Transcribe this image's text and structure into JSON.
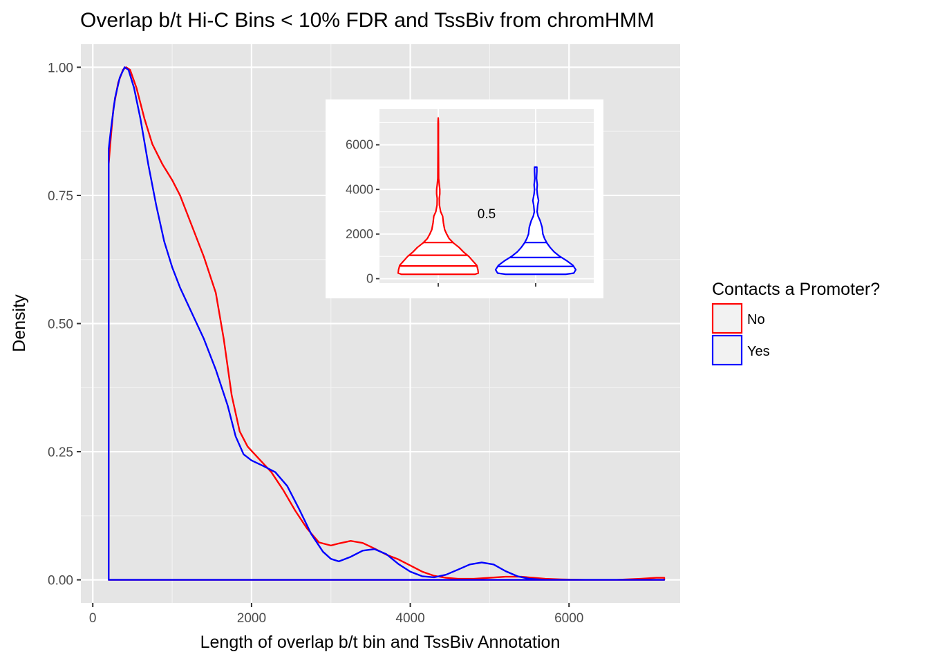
{
  "chart_data": [
    {
      "type": "line",
      "subtype": "density",
      "title": "Overlap b/t Hi-C Bins < 10% FDR and TssBiv from chromHMM",
      "xlabel": "Length of overlap b/t bin and TssBiv Annotation",
      "ylabel": "Density",
      "xlim": [
        -150,
        7400
      ],
      "ylim": [
        -0.045,
        1.045
      ],
      "x_ticks": [
        0,
        2000,
        4000,
        6000
      ],
      "y_ticks": [
        0.0,
        0.25,
        0.5,
        0.75,
        1.0
      ],
      "x_tick_labels": [
        "0",
        "2000",
        "4000",
        "6000"
      ],
      "y_tick_labels": [
        "0.00",
        "0.25",
        "0.50",
        "0.75",
        "1.00"
      ],
      "grid": true,
      "legend": {
        "title": "Contacts a Promoter?",
        "placement": "right",
        "entries": [
          {
            "label": "No",
            "color": "#ff0000"
          },
          {
            "label": "Yes",
            "color": "#0000ff"
          }
        ]
      },
      "series": [
        {
          "name": "No",
          "color": "#ff0000",
          "points": [
            [
              200,
              0.81
            ],
            [
              220,
              0.85
            ],
            [
              260,
              0.92
            ],
            [
              320,
              0.97
            ],
            [
              380,
              0.995
            ],
            [
              420,
              1.0
            ],
            [
              470,
              0.995
            ],
            [
              550,
              0.96
            ],
            [
              650,
              0.9
            ],
            [
              750,
              0.85
            ],
            [
              880,
              0.81
            ],
            [
              1000,
              0.78
            ],
            [
              1100,
              0.75
            ],
            [
              1250,
              0.69
            ],
            [
              1400,
              0.63
            ],
            [
              1550,
              0.56
            ],
            [
              1650,
              0.47
            ],
            [
              1750,
              0.36
            ],
            [
              1850,
              0.29
            ],
            [
              1950,
              0.26
            ],
            [
              2100,
              0.235
            ],
            [
              2250,
              0.21
            ],
            [
              2400,
              0.175
            ],
            [
              2550,
              0.135
            ],
            [
              2700,
              0.1
            ],
            [
              2850,
              0.073
            ],
            [
              3000,
              0.067
            ],
            [
              3100,
              0.071
            ],
            [
              3250,
              0.076
            ],
            [
              3400,
              0.072
            ],
            [
              3550,
              0.061
            ],
            [
              3700,
              0.049
            ],
            [
              3850,
              0.04
            ],
            [
              4000,
              0.028
            ],
            [
              4150,
              0.016
            ],
            [
              4300,
              0.008
            ],
            [
              4450,
              0.004
            ],
            [
              4600,
              0.002
            ],
            [
              4800,
              0.002
            ],
            [
              5000,
              0.004
            ],
            [
              5200,
              0.006
            ],
            [
              5400,
              0.006
            ],
            [
              5550,
              0.004
            ],
            [
              5700,
              0.002
            ],
            [
              5900,
              0.001
            ],
            [
              6200,
              0.0
            ],
            [
              6600,
              0.0
            ],
            [
              6900,
              0.002
            ],
            [
              7100,
              0.004
            ],
            [
              7200,
              0.004
            ],
            [
              7200,
              0.0
            ],
            [
              200,
              0.0
            ],
            [
              200,
              0.81
            ]
          ]
        },
        {
          "name": "Yes",
          "color": "#0000ff",
          "points": [
            [
              200,
              0.84
            ],
            [
              230,
              0.88
            ],
            [
              280,
              0.94
            ],
            [
              340,
              0.98
            ],
            [
              400,
              1.0
            ],
            [
              450,
              0.995
            ],
            [
              520,
              0.96
            ],
            [
              600,
              0.9
            ],
            [
              700,
              0.81
            ],
            [
              800,
              0.73
            ],
            [
              900,
              0.66
            ],
            [
              1000,
              0.61
            ],
            [
              1100,
              0.57
            ],
            [
              1250,
              0.52
            ],
            [
              1400,
              0.47
            ],
            [
              1550,
              0.41
            ],
            [
              1700,
              0.34
            ],
            [
              1800,
              0.28
            ],
            [
              1900,
              0.245
            ],
            [
              2000,
              0.233
            ],
            [
              2150,
              0.222
            ],
            [
              2300,
              0.21
            ],
            [
              2450,
              0.183
            ],
            [
              2600,
              0.138
            ],
            [
              2750,
              0.09
            ],
            [
              2900,
              0.055
            ],
            [
              3000,
              0.041
            ],
            [
              3100,
              0.036
            ],
            [
              3250,
              0.045
            ],
            [
              3400,
              0.057
            ],
            [
              3550,
              0.06
            ],
            [
              3700,
              0.05
            ],
            [
              3850,
              0.031
            ],
            [
              4000,
              0.016
            ],
            [
              4150,
              0.007
            ],
            [
              4300,
              0.005
            ],
            [
              4450,
              0.01
            ],
            [
              4600,
              0.02
            ],
            [
              4750,
              0.03
            ],
            [
              4900,
              0.034
            ],
            [
              5050,
              0.03
            ],
            [
              5200,
              0.017
            ],
            [
              5350,
              0.007
            ],
            [
              5500,
              0.002
            ],
            [
              5700,
              0.0
            ],
            [
              6200,
              0.0
            ],
            [
              7200,
              0.0
            ],
            [
              200,
              0.0
            ],
            [
              200,
              0.84
            ]
          ]
        }
      ]
    },
    {
      "type": "violin",
      "inset": true,
      "annotation": "0.5",
      "ylim": [
        -200,
        7600
      ],
      "y_ticks": [
        0,
        2000,
        4000,
        6000
      ],
      "y_tick_labels": [
        "0",
        "2000",
        "4000",
        "6000"
      ],
      "grid": true,
      "series": [
        {
          "name": "No",
          "color": "#ff0000",
          "quantiles": [
            570,
            1050,
            1620
          ],
          "profile": [
            [
              200,
              0.92
            ],
            [
              250,
              1.0
            ],
            [
              400,
              0.99
            ],
            [
              600,
              0.96
            ],
            [
              800,
              0.86
            ],
            [
              1000,
              0.76
            ],
            [
              1200,
              0.63
            ],
            [
              1400,
              0.52
            ],
            [
              1600,
              0.38
            ],
            [
              1800,
              0.27
            ],
            [
              2000,
              0.21
            ],
            [
              2200,
              0.16
            ],
            [
              2500,
              0.13
            ],
            [
              2800,
              0.11
            ],
            [
              3000,
              0.06
            ],
            [
              3300,
              0.03
            ],
            [
              3600,
              0.025
            ],
            [
              3800,
              0.04
            ],
            [
              4000,
              0.04
            ],
            [
              4200,
              0.025
            ],
            [
              4500,
              0.01
            ],
            [
              5000,
              0.008
            ],
            [
              6000,
              0.006
            ],
            [
              7000,
              0.005
            ],
            [
              7200,
              0.0
            ]
          ]
        },
        {
          "name": "Yes",
          "color": "#0000ff",
          "quantiles": [
            550,
            950,
            1620
          ],
          "profile": [
            [
              200,
              0.75
            ],
            [
              250,
              0.95
            ],
            [
              400,
              1.0
            ],
            [
              600,
              0.93
            ],
            [
              800,
              0.78
            ],
            [
              1000,
              0.6
            ],
            [
              1200,
              0.46
            ],
            [
              1400,
              0.36
            ],
            [
              1600,
              0.28
            ],
            [
              1800,
              0.22
            ],
            [
              2000,
              0.18
            ],
            [
              2300,
              0.16
            ],
            [
              2600,
              0.11
            ],
            [
              2800,
              0.06
            ],
            [
              3000,
              0.035
            ],
            [
              3300,
              0.05
            ],
            [
              3500,
              0.07
            ],
            [
              3800,
              0.04
            ],
            [
              4000,
              0.03
            ],
            [
              4200,
              0.04
            ],
            [
              4500,
              0.02
            ],
            [
              4800,
              0.03
            ],
            [
              5000,
              0.03
            ]
          ]
        }
      ]
    }
  ]
}
